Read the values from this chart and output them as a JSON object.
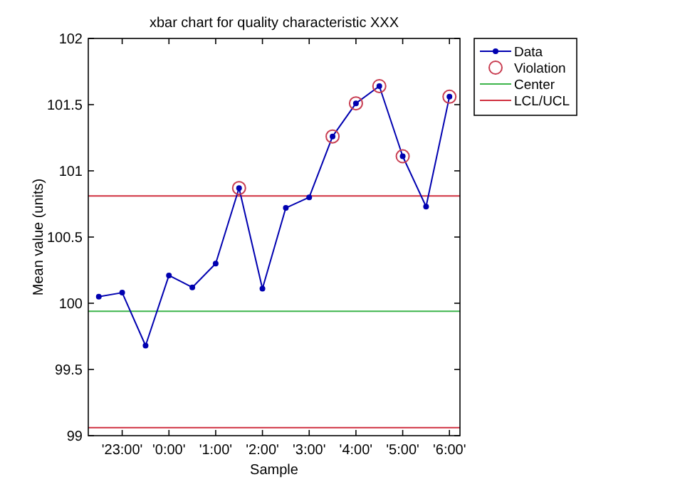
{
  "chart_data": {
    "type": "line",
    "title": "xbar chart for quality characteristic XXX",
    "xlabel": "Sample",
    "ylabel": "Mean value (units)",
    "categories": [
      null,
      "'23:00'",
      null,
      "'0:00'",
      null,
      "'1:00'",
      null,
      "'2:00'",
      null,
      "'3:00'",
      null,
      "'4:00'",
      null,
      "'5:00'",
      null,
      "'6:00'"
    ],
    "ylim": [
      99,
      102
    ],
    "yticks": [
      99,
      99.5,
      100,
      100.5,
      101,
      101.5,
      102
    ],
    "grid": false,
    "legend": "top right",
    "series": [
      {
        "name": "Data",
        "color": "#0000b0",
        "marker": "circle",
        "values": [
          100.05,
          100.08,
          99.68,
          100.21,
          100.12,
          100.3,
          100.87,
          100.11,
          100.72,
          100.8,
          101.26,
          101.51,
          101.64,
          101.11,
          100.73,
          101.56
        ]
      },
      {
        "name": "Violation",
        "type": "scatter",
        "color": "#c83c50",
        "marker": "circle",
        "values": [
          null,
          null,
          null,
          null,
          null,
          null,
          100.87,
          null,
          null,
          null,
          101.26,
          101.51,
          101.64,
          101.11,
          null,
          101.56
        ]
      }
    ],
    "ref_lines": [
      {
        "axis": "y",
        "value": 99.94,
        "label": "Center",
        "color": "#3cb44b"
      },
      {
        "axis": "y",
        "value": 100.81,
        "label": "LCL/UCL",
        "color": "#d03040"
      },
      {
        "axis": "y",
        "value": 99.06,
        "color": "#d03040"
      }
    ]
  }
}
